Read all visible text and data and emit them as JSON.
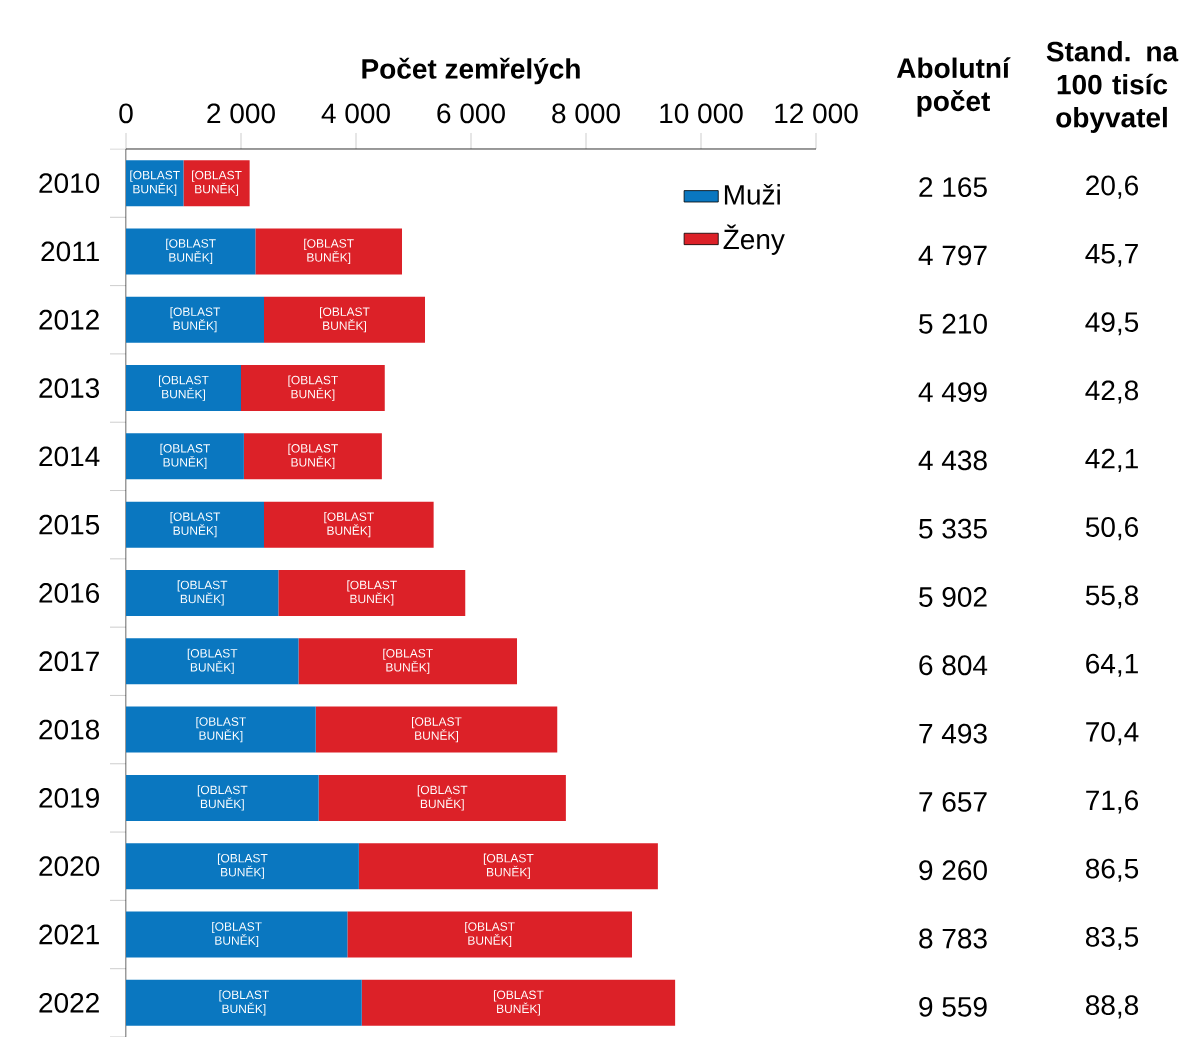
{
  "chart_data": {
    "type": "bar",
    "orientation": "horizontal",
    "stacked": true,
    "xlabel": "Počet zemřelých",
    "categories": [
      "2010",
      "2011",
      "2012",
      "2013",
      "2014",
      "2015",
      "2016",
      "2017",
      "2018",
      "2019",
      "2020",
      "2021",
      "2022"
    ],
    "series": [
      {
        "name": "Muži",
        "color": "#0a77c0",
        "values": [
          1000,
          2250,
          2400,
          2000,
          2050,
          2400,
          2650,
          3000,
          3300,
          3350,
          4050,
          3850,
          4100
        ],
        "value_labels": [
          "[OBLAST BUNĚK]",
          "[OBLAST BUNĚK]",
          "[OBLAST BUNĚK]",
          "[OBLAST BUNĚK]",
          "[OBLAST BUNĚK]",
          "[OBLAST BUNĚK]",
          "[OBLAST BUNĚK]",
          "[OBLAST BUNĚK]",
          "[OBLAST BUNĚK]",
          "[OBLAST BUNĚK]",
          "[OBLAST BUNĚK]",
          "[OBLAST BUNĚK]",
          "[OBLAST BUNĚK]"
        ]
      },
      {
        "name": "Ženy",
        "color": "#dc2128",
        "values": [
          1150,
          2550,
          2800,
          2500,
          2400,
          2950,
          3250,
          3800,
          4200,
          4300,
          5200,
          4950,
          5450
        ],
        "value_labels": [
          "[OBLAST BUNĚK]",
          "[OBLAST BUNĚK]",
          "[OBLAST BUNĚK]",
          "[OBLAST BUNĚK]",
          "[OBLAST BUNĚK]",
          "[OBLAST BUNĚK]",
          "[OBLAST BUNĚK]",
          "[OBLAST BUNĚK]",
          "[OBLAST BUNĚK]",
          "[OBLAST BUNĚK]",
          "[OBLAST BUNĚK]",
          "[OBLAST BUNĚK]",
          "[OBLAST BUNĚK]"
        ]
      }
    ],
    "xlim": [
      0,
      12000
    ],
    "xticks": [
      0,
      {
        "value": 2000,
        "label": "2 000"
      },
      {
        "value": 4000,
        "label": "4 000"
      },
      {
        "value": 6000,
        "label": "6 000"
      },
      {
        "value": 8000,
        "label": "8 000"
      },
      {
        "value": 10000,
        "label": "10 000"
      },
      {
        "value": 12000,
        "label": "12 000"
      }
    ],
    "annotations": [
      "Abolutní počet",
      "Stand. na 100 tisíc obyvatel",
      "2 165",
      "4 797",
      "5 210",
      "4 499",
      "4 438",
      "5 335",
      "5 902",
      "6 804",
      "7 493",
      "7 657",
      "9 260",
      "8 783",
      "9 559",
      "20,6",
      "45,7",
      "49,5",
      "42,8",
      "42,1",
      "50,6",
      "55,8",
      "64,1",
      "70,4",
      "71,6",
      "86,5",
      "83,5",
      "88,8"
    ],
    "legend": "top right"
  }
}
